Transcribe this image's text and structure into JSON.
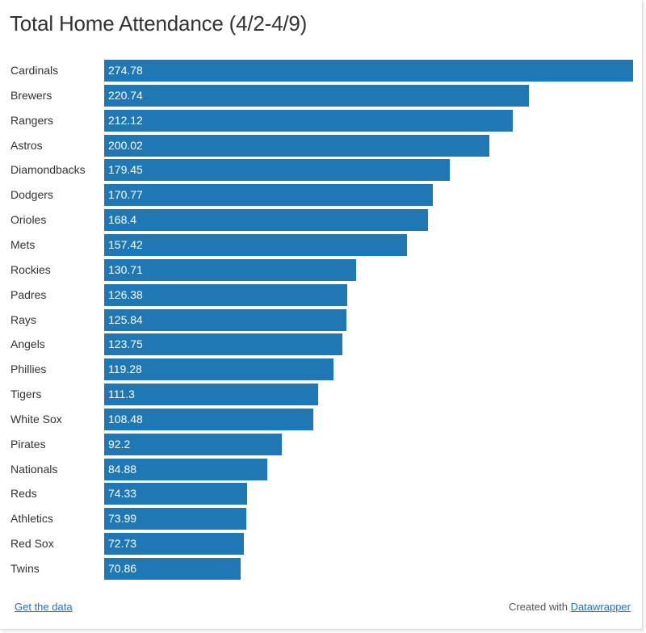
{
  "title": "Total Home Attendance (4/2-4/9)",
  "footer": {
    "get_data_label": "Get the data",
    "created_with_label": "Created with",
    "datawrapper_label": "Datawrapper"
  },
  "colors": {
    "bar": "#1f77b4",
    "link": "#1a73d9",
    "text": "#333333"
  },
  "chart_data": {
    "type": "bar",
    "orientation": "horizontal",
    "title": "Total Home Attendance (4/2-4/9)",
    "xlabel": "",
    "ylabel": "",
    "xlim": [
      0,
      274.78
    ],
    "grid": false,
    "legend": "none",
    "categories": [
      "Cardinals",
      "Brewers",
      "Rangers",
      "Astros",
      "Diamondbacks",
      "Dodgers",
      "Orioles",
      "Mets",
      "Rockies",
      "Padres",
      "Rays",
      "Angels",
      "Phillies",
      "Tigers",
      "White Sox",
      "Pirates",
      "Nationals",
      "Reds",
      "Athletics",
      "Red Sox",
      "Twins"
    ],
    "values": [
      274.78,
      220.74,
      212.12,
      200.02,
      179.45,
      170.77,
      168.4,
      157.42,
      130.71,
      126.38,
      125.84,
      123.75,
      119.28,
      111.3,
      108.48,
      92.2,
      84.88,
      74.33,
      73.99,
      72.73,
      70.86
    ],
    "value_labels": [
      "274.78",
      "220.74",
      "212.12",
      "200.02",
      "179.45",
      "170.77",
      "168.4",
      "157.42",
      "130.71",
      "126.38",
      "125.84",
      "123.75",
      "119.28",
      "111.3",
      "108.48",
      "92.2",
      "84.88",
      "74.33",
      "73.99",
      "72.73",
      "70.86"
    ]
  }
}
